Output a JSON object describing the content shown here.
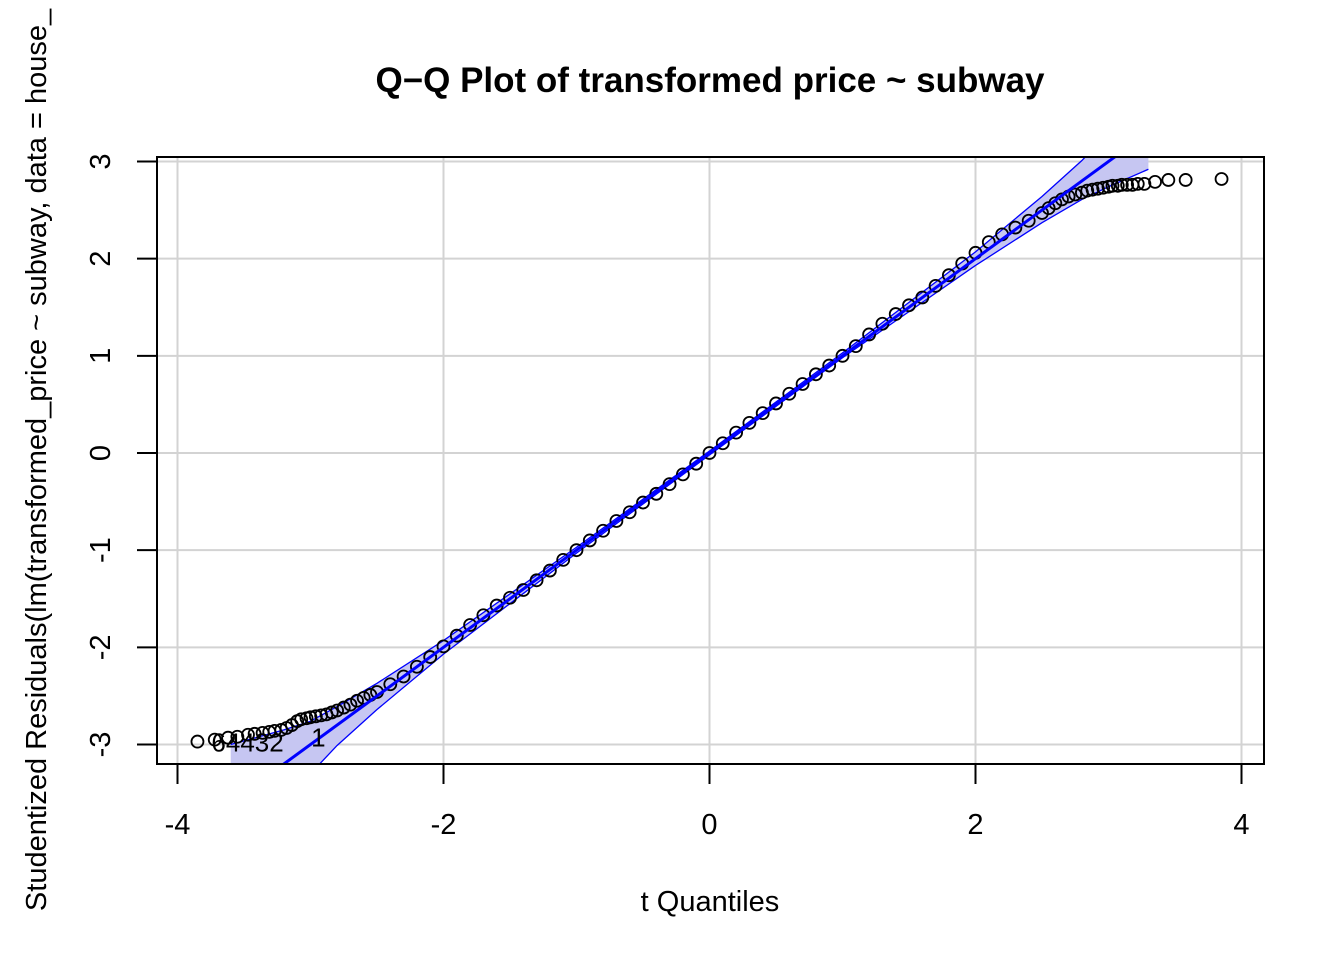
{
  "chart_data": {
    "type": "scatter",
    "title": "Q−Q Plot of transformed price ~ subway",
    "xlabel": "t Quantiles",
    "ylabel": "Studentized Residuals(lm(transformed_price ~ subway, data = house_",
    "xlim": [
      -4.1,
      4.1
    ],
    "ylim": [
      -3.2,
      3.05
    ],
    "x_ticks": [
      -4,
      -2,
      0,
      2,
      4
    ],
    "x_tick_labels": [
      "-4",
      "-2",
      "0",
      "2",
      "4"
    ],
    "y_ticks": [
      -3,
      -2,
      -1,
      0,
      1,
      2,
      3
    ],
    "y_tick_labels": [
      "-3",
      "-2",
      "-1",
      "0",
      "1",
      "2",
      "3"
    ],
    "grid": true,
    "reference_line": {
      "intercept": 0.0,
      "slope": 1.0
    },
    "confidence_band": {
      "x": [
        -3.6,
        -3.2,
        -3.0,
        -2.8,
        -2.5,
        -2.0,
        -1.0,
        0.0,
        1.0,
        2.0,
        2.5,
        2.8,
        3.0,
        3.3
      ],
      "lower": [
        -4.25,
        -3.55,
        -3.3,
        -3.01,
        -2.64,
        -2.07,
        -1.03,
        -0.02,
        0.98,
        1.93,
        2.37,
        2.61,
        2.74,
        2.92
      ],
      "upper": [
        -3.0,
        -2.85,
        -2.76,
        -2.61,
        -2.37,
        -1.93,
        -0.97,
        0.02,
        1.03,
        2.07,
        2.64,
        3.01,
        3.3,
        3.75
      ]
    },
    "series": [
      {
        "x": [
          -3.85,
          -3.72,
          -3.62,
          -3.55,
          -3.47,
          -3.42,
          -3.36,
          -3.31,
          -3.27,
          -3.22,
          -3.18,
          -3.14,
          -3.1,
          -3.07,
          -3.03,
          -3.0,
          -2.96,
          -2.92,
          -2.88,
          -2.84,
          -2.8,
          -2.75,
          -2.7,
          -2.65,
          -2.6,
          -2.55,
          -2.5,
          -2.4,
          -2.3,
          -2.2,
          -2.1,
          -2.0,
          -1.9,
          -1.8,
          -1.7,
          -1.6,
          -1.5,
          -1.4,
          -1.3,
          -1.2,
          -1.1,
          -1.0,
          -0.9,
          -0.8,
          -0.7,
          -0.6,
          -0.5,
          -0.4,
          -0.3,
          -0.2,
          -0.1,
          0.0,
          0.1,
          0.2,
          0.3,
          0.4,
          0.5,
          0.6,
          0.7,
          0.8,
          0.9,
          1.0,
          1.1,
          1.2,
          1.3,
          1.4,
          1.5,
          1.6,
          1.7,
          1.8,
          1.9,
          2.0,
          2.1,
          2.2,
          2.3,
          2.4,
          2.5,
          2.55,
          2.6,
          2.65,
          2.7,
          2.75,
          2.8,
          2.84,
          2.88,
          2.92,
          2.96,
          3.0,
          3.03,
          3.07,
          3.1,
          3.14,
          3.18,
          3.22,
          3.27,
          3.35,
          3.45,
          3.58,
          3.85
        ],
        "y": [
          -2.97,
          -2.95,
          -2.93,
          -2.92,
          -2.9,
          -2.89,
          -2.88,
          -2.87,
          -2.86,
          -2.85,
          -2.83,
          -2.8,
          -2.76,
          -2.74,
          -2.73,
          -2.72,
          -2.71,
          -2.7,
          -2.69,
          -2.67,
          -2.65,
          -2.62,
          -2.59,
          -2.55,
          -2.52,
          -2.49,
          -2.46,
          -2.38,
          -2.3,
          -2.2,
          -2.1,
          -1.99,
          -1.88,
          -1.77,
          -1.67,
          -1.57,
          -1.49,
          -1.41,
          -1.31,
          -1.21,
          -1.1,
          -1.0,
          -0.9,
          -0.8,
          -0.7,
          -0.61,
          -0.51,
          -0.42,
          -0.32,
          -0.22,
          -0.11,
          0.0,
          0.1,
          0.21,
          0.31,
          0.41,
          0.51,
          0.61,
          0.71,
          0.81,
          0.9,
          1.0,
          1.1,
          1.22,
          1.33,
          1.43,
          1.52,
          1.6,
          1.72,
          1.83,
          1.95,
          2.06,
          2.17,
          2.25,
          2.32,
          2.39,
          2.47,
          2.52,
          2.57,
          2.61,
          2.64,
          2.66,
          2.68,
          2.7,
          2.71,
          2.72,
          2.73,
          2.74,
          2.75,
          2.75,
          2.76,
          2.76,
          2.76,
          2.77,
          2.77,
          2.79,
          2.81,
          2.81,
          2.82
        ]
      }
    ],
    "point_labels": [
      {
        "text": "64432",
        "x": -3.73,
        "y": -2.98
      },
      {
        "text": "1",
        "x": -2.98,
        "y": -2.93
      }
    ],
    "colors": {
      "points": "#000000",
      "line": "#0000ff",
      "band_fill": "#c6c6f2",
      "band_edge": "#0000ff",
      "grid": "#d3d3d3"
    }
  }
}
